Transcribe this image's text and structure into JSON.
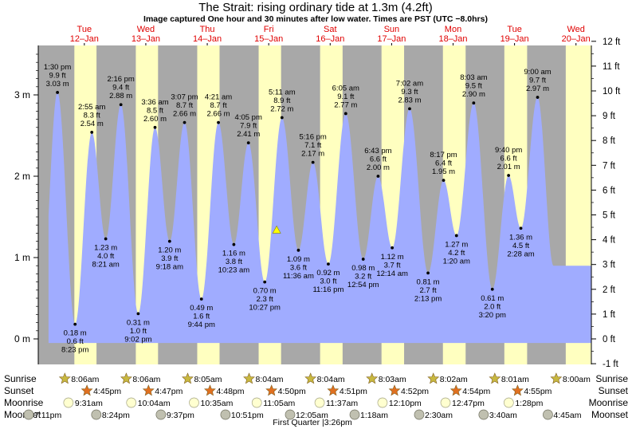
{
  "title": "The Strait: rising  ordinary tide at 1.3m (4.2ft)",
  "subtitle": "Image captured One hour and 30 minutes after low water. Times are PST (UTC −8.0hrs)",
  "colors": {
    "water": "#a0acff",
    "night": "#a8a8a8",
    "day": "#ffffc0",
    "title": "#000000",
    "day_label": "#e00000",
    "current_marker": "#ffff00",
    "sun_icon": "#c8b840",
    "sunset_icon": "#e07020",
    "moonrise_icon": "#ffffd0",
    "moonset_icon": "#c0c0b0"
  },
  "days": [
    {
      "name": "Tue",
      "date": "12–Jan"
    },
    {
      "name": "Wed",
      "date": "13–Jan"
    },
    {
      "name": "Thu",
      "date": "14–Jan"
    },
    {
      "name": "Fri",
      "date": "15–Jan"
    },
    {
      "name": "Sat",
      "date": "16–Jan"
    },
    {
      "name": "Sun",
      "date": "17–Jan"
    },
    {
      "name": "Mon",
      "date": "18–Jan"
    },
    {
      "name": "Tue",
      "date": "19–Jan"
    },
    {
      "name": "Wed",
      "date": "20–Jan"
    }
  ],
  "chart_data": {
    "type": "area",
    "title": "The Strait: rising  ordinary tide at 1.3m (4.2ft)",
    "x_unit": "hours since 11-Jan 18:00 PST",
    "xlim": [
      0,
      216
    ],
    "ylim_m": [
      -0.3,
      3.6
    ],
    "ylim_ft": [
      -1,
      12
    ],
    "left_axis_ticks": [
      {
        "v": 0,
        "label": "0 m"
      },
      {
        "v": 1,
        "label": "1 m"
      },
      {
        "v": 2,
        "label": "2 m"
      },
      {
        "v": 3,
        "label": "3 m"
      }
    ],
    "right_axis_ticks": [
      "-1 ft",
      "0 ft",
      "1 ft",
      "2 ft",
      "3 ft",
      "4 ft",
      "5 ft",
      "6 ft",
      "7 ft",
      "8 ft",
      "9 ft",
      "10 ft",
      "11 ft",
      "12 ft"
    ],
    "data_start_hour": 4,
    "current": {
      "hour": 93.1,
      "height_m": 1.3
    },
    "daylight": [
      {
        "start": 14.1,
        "end": 22.75
      },
      {
        "start": 38.1,
        "end": 46.78
      },
      {
        "start": 62.08,
        "end": 70.8
      },
      {
        "start": 86.07,
        "end": 94.83
      },
      {
        "start": 110.07,
        "end": 118.85
      },
      {
        "start": 134.05,
        "end": 142.87
      },
      {
        "start": 158.03,
        "end": 166.9
      },
      {
        "start": 182.02,
        "end": 190.92
      },
      {
        "start": 206.0,
        "end": 216
      }
    ],
    "extremes": [
      {
        "hour": 7.5,
        "type": "high",
        "time": "1:30 pm",
        "m": "3.03 m",
        "ft": "9.9 ft",
        "h": 3.03
      },
      {
        "hour": 14.38,
        "type": "low",
        "time": "8:23 pm",
        "m": "0.18 m",
        "ft": "0.6 ft",
        "h": 0.18
      },
      {
        "hour": 20.92,
        "type": "high",
        "time": "2:55 am",
        "m": "2.54 m",
        "ft": "8.3 ft",
        "h": 2.54
      },
      {
        "hour": 26.35,
        "type": "low",
        "time": "8:21 am",
        "m": "1.23 m",
        "ft": "4.0 ft",
        "h": 1.23
      },
      {
        "hour": 32.27,
        "type": "high",
        "time": "2:16 pm",
        "m": "2.88 m",
        "ft": "9.4 ft",
        "h": 2.88
      },
      {
        "hour": 39.03,
        "type": "low",
        "time": "9:02 pm",
        "m": "0.31 m",
        "ft": "1.0 ft",
        "h": 0.31
      },
      {
        "hour": 45.6,
        "type": "high",
        "time": "3:36 am",
        "m": "2.60 m",
        "ft": "8.5 ft",
        "h": 2.6
      },
      {
        "hour": 51.3,
        "type": "low",
        "time": "9:18 am",
        "m": "1.20 m",
        "ft": "3.9 ft",
        "h": 1.2
      },
      {
        "hour": 57.12,
        "type": "high",
        "time": "3:07 pm",
        "m": "2.66 m",
        "ft": "8.7 ft",
        "h": 2.66
      },
      {
        "hour": 63.73,
        "type": "low",
        "time": "9:44 pm",
        "m": "0.49 m",
        "ft": "1.6 ft",
        "h": 0.49
      },
      {
        "hour": 70.35,
        "type": "high",
        "time": "4:21 am",
        "m": "2.66 m",
        "ft": "8.7 ft",
        "h": 2.66
      },
      {
        "hour": 76.38,
        "type": "low",
        "time": "10:23 am",
        "m": "1.16 m",
        "ft": "3.8 ft",
        "h": 1.16
      },
      {
        "hour": 82.08,
        "type": "high",
        "time": "4:05 pm",
        "m": "2.41 m",
        "ft": "7.9 ft",
        "h": 2.41
      },
      {
        "hour": 88.45,
        "type": "low",
        "time": "10:27 pm",
        "m": "0.70 m",
        "ft": "2.3 ft",
        "h": 0.7
      },
      {
        "hour": 95.18,
        "type": "high",
        "time": "5:11 am",
        "m": "2.72 m",
        "ft": "8.9 ft",
        "h": 2.72
      },
      {
        "hour": 101.6,
        "type": "low",
        "time": "11:36 am",
        "m": "1.09 m",
        "ft": "3.6 ft",
        "h": 1.09
      },
      {
        "hour": 107.27,
        "type": "high",
        "time": "5:16 pm",
        "m": "2.17 m",
        "ft": "7.1 ft",
        "h": 2.17
      },
      {
        "hour": 113.27,
        "type": "low",
        "time": "11:16 pm",
        "m": "0.92 m",
        "ft": "3.0 ft",
        "h": 0.92
      },
      {
        "hour": 120.08,
        "type": "high",
        "time": "6:05 am",
        "m": "2.77 m",
        "ft": "9.1 ft",
        "h": 2.77
      },
      {
        "hour": 126.9,
        "type": "low",
        "time": "12:54 pm",
        "m": "0.98 m",
        "ft": "3.2 ft",
        "h": 0.98
      },
      {
        "hour": 132.72,
        "type": "high",
        "time": "6:43 pm",
        "m": "2.00 m",
        "ft": "6.6 ft",
        "h": 2.0
      },
      {
        "hour": 138.23,
        "type": "low",
        "time": "12:14 am",
        "m": "1.12 m",
        "ft": "3.7 ft",
        "h": 1.12
      },
      {
        "hour": 145.03,
        "type": "high",
        "time": "7:02 am",
        "m": "2.83 m",
        "ft": "9.3 ft",
        "h": 2.83
      },
      {
        "hour": 152.22,
        "type": "low",
        "time": "2:13 pm",
        "m": "0.81 m",
        "ft": "2.7 ft",
        "h": 0.81
      },
      {
        "hour": 158.28,
        "type": "high",
        "time": "8:17 pm",
        "m": "1.95 m",
        "ft": "6.4 ft",
        "h": 1.95
      },
      {
        "hour": 163.33,
        "type": "low",
        "time": "1:20 am",
        "m": "1.27 m",
        "ft": "4.2 ft",
        "h": 1.27
      },
      {
        "hour": 170.05,
        "type": "high",
        "time": "8:03 am",
        "m": "2.90 m",
        "ft": "9.5 ft",
        "h": 2.9
      },
      {
        "hour": 177.33,
        "type": "low",
        "time": "3:20 pm",
        "m": "0.61 m",
        "ft": "2.0 ft",
        "h": 0.61
      },
      {
        "hour": 183.67,
        "type": "high",
        "time": "9:40 pm",
        "m": "2.01 m",
        "ft": "6.6 ft",
        "h": 2.01
      },
      {
        "hour": 188.47,
        "type": "low",
        "time": "2:28 am",
        "m": "1.36 m",
        "ft": "4.5 ft",
        "h": 1.36
      },
      {
        "hour": 195.0,
        "type": "high",
        "time": "9:00 am",
        "m": "2.97 m",
        "ft": "9.7 ft",
        "h": 2.97
      }
    ],
    "end_height_m": 1.5
  },
  "almanac": {
    "row_labels": {
      "sunrise": "Sunrise",
      "sunset": "Sunset",
      "moonrise": "Moonrise",
      "moonset": "Moonset"
    },
    "sunrise": [
      {
        "hour": 14.1,
        "time": "8:06am"
      },
      {
        "hour": 38.1,
        "time": "8:06am"
      },
      {
        "hour": 62.08,
        "time": "8:05am"
      },
      {
        "hour": 86.07,
        "time": "8:04am"
      },
      {
        "hour": 110.07,
        "time": "8:04am"
      },
      {
        "hour": 134.05,
        "time": "8:03am"
      },
      {
        "hour": 158.03,
        "time": "8:02am"
      },
      {
        "hour": 182.02,
        "time": "8:01am"
      },
      {
        "hour": 206.0,
        "time": "8:00am"
      }
    ],
    "sunset": [
      {
        "hour": 22.75,
        "time": "4:45pm"
      },
      {
        "hour": 46.78,
        "time": "4:47pm"
      },
      {
        "hour": 70.8,
        "time": "4:48pm"
      },
      {
        "hour": 94.83,
        "time": "4:50pm"
      },
      {
        "hour": 118.85,
        "time": "4:51pm"
      },
      {
        "hour": 142.87,
        "time": "4:52pm"
      },
      {
        "hour": 166.9,
        "time": "4:54pm"
      },
      {
        "hour": 190.92,
        "time": "4:55pm"
      }
    ],
    "moonrise": [
      {
        "hour": 15.52,
        "time": "9:31am"
      },
      {
        "hour": 40.07,
        "time": "10:04am"
      },
      {
        "hour": 64.58,
        "time": "10:35am"
      },
      {
        "hour": 89.08,
        "time": "11:05am"
      },
      {
        "hour": 113.62,
        "time": "11:37am"
      },
      {
        "hour": 138.17,
        "time": "12:10pm"
      },
      {
        "hour": 162.78,
        "time": "12:47pm"
      },
      {
        "hour": 187.47,
        "time": "1:28pm"
      }
    ],
    "moonset": [
      {
        "hour": 0.0,
        "time": "7:11pm",
        "x": 36
      },
      {
        "hour": 26.4,
        "time": "8:24pm"
      },
      {
        "hour": 51.62,
        "time": "9:37pm"
      },
      {
        "hour": 76.85,
        "time": "10:51pm"
      },
      {
        "hour": 102.08,
        "time": "12:05am"
      },
      {
        "hour": 127.3,
        "time": "1:18am"
      },
      {
        "hour": 152.5,
        "time": "2:30am"
      },
      {
        "hour": 177.67,
        "time": "3:40am"
      },
      {
        "hour": 202.75,
        "time": "4:45am"
      }
    ],
    "moon_phase": "First Quarter |3:26pm"
  }
}
